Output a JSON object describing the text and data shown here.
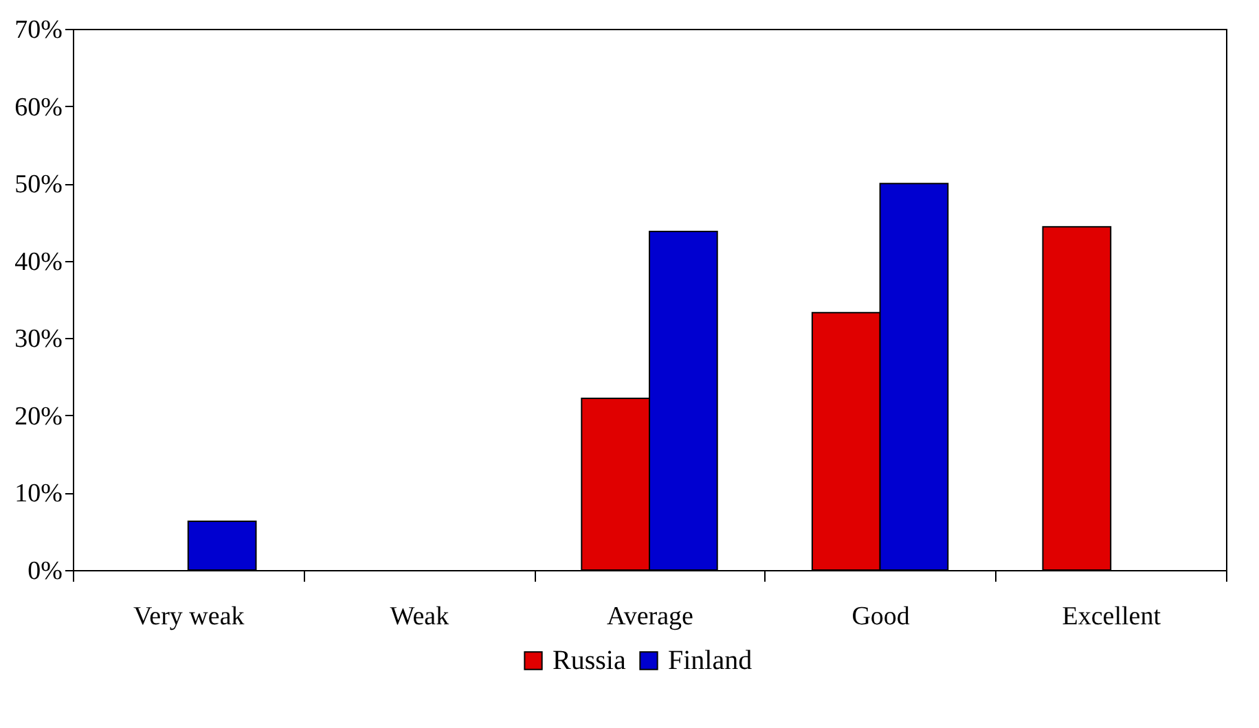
{
  "chart_data": {
    "type": "bar",
    "categories": [
      "Very weak",
      "Weak",
      "Average",
      "Good",
      "Excellent"
    ],
    "series": [
      {
        "name": "Russia",
        "color": "#e00000",
        "values": [
          null,
          null,
          22.2,
          33.3,
          44.4
        ]
      },
      {
        "name": "Finland",
        "color": "#0000d0",
        "values": [
          6.3,
          null,
          43.8,
          50,
          null
        ]
      }
    ],
    "ylim": [
      0,
      70
    ],
    "yticks": [
      {
        "value": 0,
        "label": "0%"
      },
      {
        "value": 10,
        "label": "10%"
      },
      {
        "value": 20,
        "label": "20%"
      },
      {
        "value": 30,
        "label": "30%"
      },
      {
        "value": 40,
        "label": "40%"
      },
      {
        "value": 50,
        "label": "50%"
      },
      {
        "value": 60,
        "label": "60%"
      },
      {
        "value": 70,
        "label": "70%"
      }
    ],
    "grid": false,
    "legend": "bottom"
  }
}
